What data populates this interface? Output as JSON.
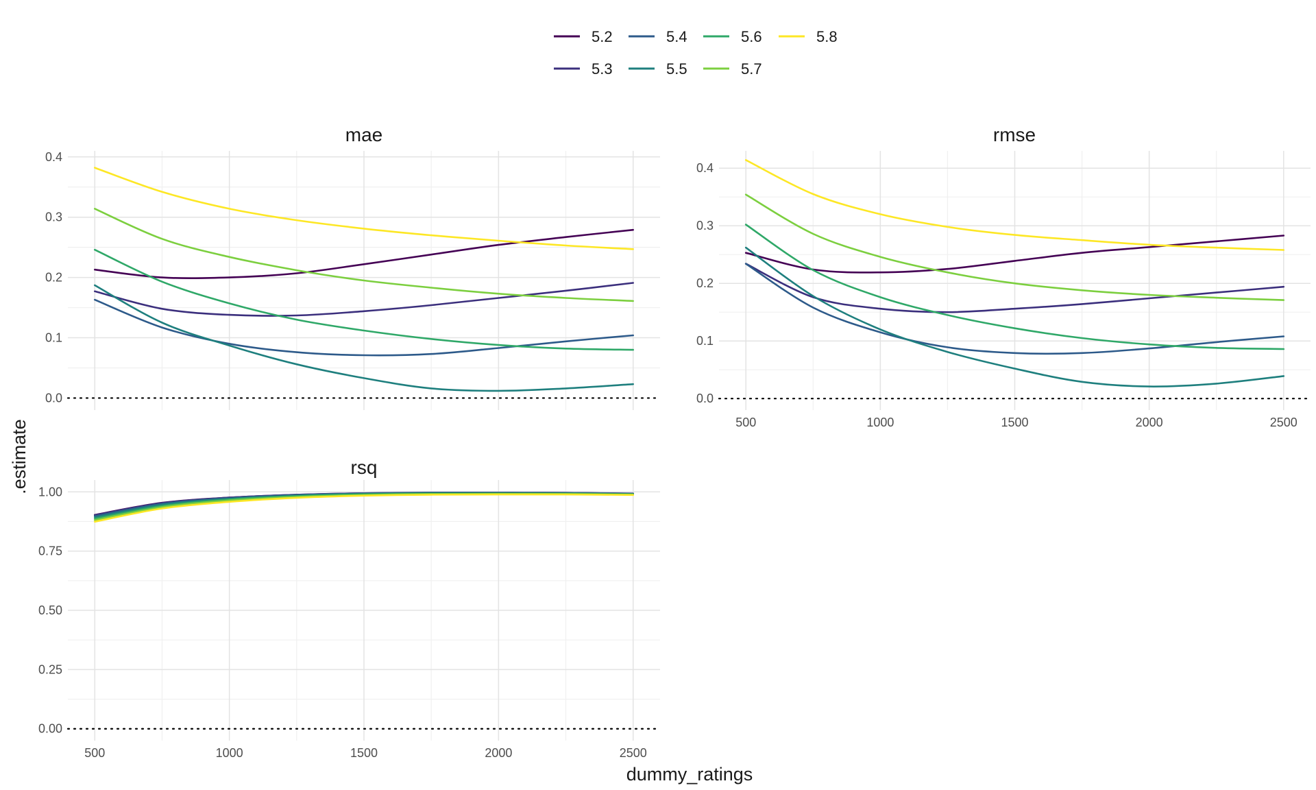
{
  "chart_data": {
    "type": "line",
    "xlabel": "dummy_ratings",
    "ylabel": ".estimate",
    "legend": {
      "placement": "top",
      "entries": [
        {
          "label": "5.2",
          "color": "#440154"
        },
        {
          "label": "5.3",
          "color": "#3b2f7d"
        },
        {
          "label": "5.4",
          "color": "#2d5a8a"
        },
        {
          "label": "5.5",
          "color": "#1e7f7e"
        },
        {
          "label": "5.6",
          "color": "#2fa868"
        },
        {
          "label": "5.7",
          "color": "#7ccf3f"
        },
        {
          "label": "5.8",
          "color": "#fde725"
        }
      ]
    },
    "grid": true,
    "zero_reference_line": "dotted",
    "x": [
      500,
      750,
      1000,
      1250,
      1500,
      1750,
      2000,
      2250,
      2500
    ],
    "panels": [
      {
        "title": "mae",
        "xlim": [
          400,
          2600
        ],
        "ylim": [
          -0.02,
          0.41
        ],
        "yticks": [
          "0.0",
          "0.1",
          "0.2",
          "0.3",
          "0.4"
        ],
        "yticks_values": [
          0,
          0.1,
          0.2,
          0.3,
          0.4
        ],
        "xticks": [],
        "series": [
          {
            "name": "5.2",
            "values": [
              0.213,
              0.2,
              0.2,
              0.207,
              0.222,
              0.238,
              0.254,
              0.267,
              0.279
            ]
          },
          {
            "name": "5.3",
            "values": [
              0.177,
              0.148,
              0.138,
              0.137,
              0.144,
              0.154,
              0.166,
              0.178,
              0.191
            ]
          },
          {
            "name": "5.4",
            "values": [
              0.163,
              0.117,
              0.09,
              0.076,
              0.071,
              0.073,
              0.083,
              0.094,
              0.104
            ]
          },
          {
            "name": "5.5",
            "values": [
              0.187,
              0.125,
              0.087,
              0.056,
              0.033,
              0.016,
              0.012,
              0.016,
              0.023
            ]
          },
          {
            "name": "5.6",
            "values": [
              0.246,
              0.193,
              0.157,
              0.13,
              0.112,
              0.098,
              0.088,
              0.082,
              0.08
            ]
          },
          {
            "name": "5.7",
            "values": [
              0.314,
              0.264,
              0.234,
              0.212,
              0.195,
              0.183,
              0.173,
              0.166,
              0.161
            ]
          },
          {
            "name": "5.8",
            "values": [
              0.382,
              0.342,
              0.314,
              0.295,
              0.281,
              0.27,
              0.261,
              0.253,
              0.247
            ]
          }
        ]
      },
      {
        "title": "rmse",
        "xlim": [
          400,
          2600
        ],
        "ylim": [
          -0.02,
          0.43
        ],
        "yticks": [
          "0.0",
          "0.1",
          "0.2",
          "0.3",
          "0.4"
        ],
        "yticks_values": [
          0,
          0.1,
          0.2,
          0.3,
          0.4
        ],
        "xticks": [
          "500",
          "1000",
          "1500",
          "2000",
          "2500"
        ],
        "xticks_values": [
          500,
          1000,
          1500,
          2000,
          2500
        ],
        "series": [
          {
            "name": "5.2",
            "values": [
              0.253,
              0.224,
              0.219,
              0.225,
              0.239,
              0.253,
              0.263,
              0.273,
              0.283
            ]
          },
          {
            "name": "5.3",
            "values": [
              0.234,
              0.176,
              0.156,
              0.15,
              0.156,
              0.164,
              0.174,
              0.184,
              0.194
            ]
          },
          {
            "name": "5.4",
            "values": [
              0.234,
              0.158,
              0.115,
              0.089,
              0.079,
              0.079,
              0.087,
              0.098,
              0.108
            ]
          },
          {
            "name": "5.5",
            "values": [
              0.262,
              0.178,
              0.12,
              0.081,
              0.052,
              0.029,
              0.021,
              0.026,
              0.039
            ]
          },
          {
            "name": "5.6",
            "values": [
              0.302,
              0.223,
              0.176,
              0.145,
              0.122,
              0.105,
              0.094,
              0.088,
              0.086
            ]
          },
          {
            "name": "5.7",
            "values": [
              0.354,
              0.286,
              0.246,
              0.219,
              0.2,
              0.188,
              0.18,
              0.175,
              0.171
            ]
          },
          {
            "name": "5.8",
            "values": [
              0.414,
              0.355,
              0.32,
              0.298,
              0.284,
              0.275,
              0.267,
              0.262,
              0.258
            ]
          }
        ]
      },
      {
        "title": "rsq",
        "xlim": [
          400,
          2600
        ],
        "ylim": [
          -0.05,
          1.05
        ],
        "yticks": [
          "0.00",
          "0.25",
          "0.50",
          "0.75",
          "1.00"
        ],
        "yticks_values": [
          0,
          0.25,
          0.5,
          0.75,
          1.0
        ],
        "xticks": [
          "500",
          "1000",
          "1500",
          "2000",
          "2500"
        ],
        "xticks_values": [
          500,
          1000,
          1500,
          2000,
          2500
        ],
        "series": [
          {
            "name": "5.2",
            "values": [
              0.903,
              0.954,
              0.976,
              0.988,
              0.994,
              0.996,
              0.996,
              0.996,
              0.992
            ]
          },
          {
            "name": "5.3",
            "values": [
              0.902,
              0.953,
              0.976,
              0.988,
              0.994,
              0.997,
              0.997,
              0.996,
              0.993
            ]
          },
          {
            "name": "5.4",
            "values": [
              0.898,
              0.95,
              0.974,
              0.987,
              0.993,
              0.996,
              0.996,
              0.995,
              0.992
            ]
          },
          {
            "name": "5.5",
            "values": [
              0.893,
              0.946,
              0.971,
              0.985,
              0.992,
              0.995,
              0.995,
              0.994,
              0.991
            ]
          },
          {
            "name": "5.6",
            "values": [
              0.887,
              0.941,
              0.968,
              0.982,
              0.99,
              0.993,
              0.993,
              0.993,
              0.99
            ]
          },
          {
            "name": "5.7",
            "values": [
              0.881,
              0.936,
              0.964,
              0.979,
              0.987,
              0.991,
              0.992,
              0.991,
              0.988
            ]
          },
          {
            "name": "5.8",
            "values": [
              0.874,
              0.93,
              0.958,
              0.975,
              0.984,
              0.988,
              0.989,
              0.989,
              0.987
            ]
          }
        ]
      }
    ]
  }
}
